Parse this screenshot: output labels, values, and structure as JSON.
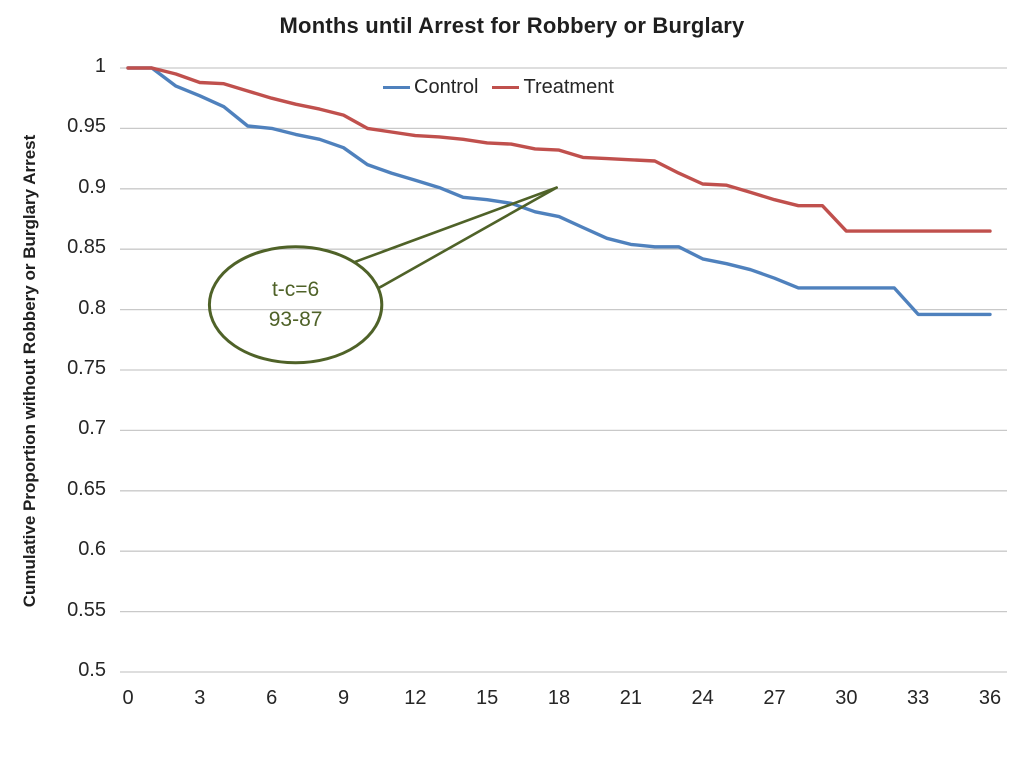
{
  "title": "Months until Arrest for Robbery or Burglary",
  "chart_data": {
    "type": "line",
    "title": "Months until Arrest for Robbery or Burglary",
    "xlabel": "",
    "ylabel": "Cumulative Proportion without Robbery or Burglary Arrest",
    "x": [
      0,
      1,
      2,
      3,
      4,
      5,
      6,
      7,
      8,
      9,
      10,
      11,
      12,
      13,
      14,
      15,
      16,
      17,
      18,
      19,
      20,
      21,
      22,
      23,
      24,
      25,
      26,
      27,
      28,
      29,
      30,
      31,
      32,
      33,
      34,
      35,
      36
    ],
    "series": [
      {
        "name": "Control",
        "color": "#4F81BD",
        "values": [
          1.0,
          1.0,
          0.985,
          0.977,
          0.968,
          0.952,
          0.95,
          0.945,
          0.941,
          0.934,
          0.92,
          0.913,
          0.907,
          0.901,
          0.893,
          0.891,
          0.888,
          0.881,
          0.877,
          0.868,
          0.859,
          0.854,
          0.852,
          0.852,
          0.842,
          0.838,
          0.833,
          0.826,
          0.818,
          0.818,
          0.818,
          0.818,
          0.818,
          0.796,
          0.796,
          0.796,
          0.796
        ]
      },
      {
        "name": "Treatment",
        "color": "#C0504D",
        "values": [
          1.0,
          1.0,
          0.995,
          0.988,
          0.987,
          0.981,
          0.975,
          0.97,
          0.966,
          0.961,
          0.95,
          0.947,
          0.944,
          0.943,
          0.941,
          0.938,
          0.937,
          0.933,
          0.932,
          0.926,
          0.925,
          0.924,
          0.923,
          0.913,
          0.904,
          0.903,
          0.897,
          0.891,
          0.886,
          0.886,
          0.865,
          0.865,
          0.865,
          0.865,
          0.865,
          0.865,
          0.865
        ]
      }
    ],
    "xlim": [
      0,
      36
    ],
    "ylim": [
      0.5,
      1.0
    ],
    "x_ticks": [
      "0",
      "3",
      "6",
      "9",
      "12",
      "15",
      "18",
      "21",
      "24",
      "27",
      "30",
      "33",
      "36"
    ],
    "y_ticks": [
      "1",
      "0.95",
      "0.9",
      "0.85",
      "0.8",
      "0.75",
      "0.7",
      "0.65",
      "0.6",
      "0.55",
      "0.5"
    ],
    "grid": "horizontal",
    "grid_color": "#C9C9C9",
    "legend_position": "top-center",
    "annotation": {
      "lines": [
        "t-c=6",
        "93-87"
      ],
      "color": "#4F6228",
      "center_month": 7.0,
      "center_value": 0.804,
      "rx_months": 3.6,
      "ry_value": 0.048,
      "tip_month": 17.9,
      "tip_value": 0.901
    }
  }
}
